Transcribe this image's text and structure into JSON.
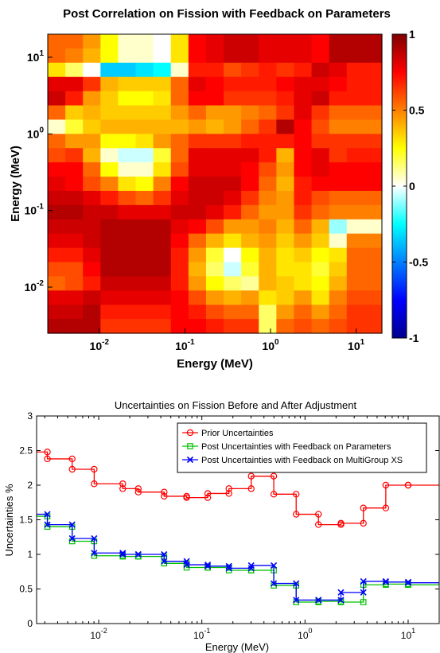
{
  "chart_data": [
    {
      "type": "heatmap",
      "title": "Post Correlation on Fission with Feedback on Parameters",
      "xlabel": "Energy (MeV)",
      "ylabel": "Energy (MeV)",
      "scale": "log",
      "xlim": [
        0.0025,
        20
      ],
      "ylim": [
        0.0025,
        20
      ],
      "x_ticks": [
        {
          "base": "10",
          "exp": "-2"
        },
        {
          "base": "10",
          "exp": "-1"
        },
        {
          "base": "10",
          "exp": "0"
        },
        {
          "base": "10",
          "exp": "1"
        }
      ],
      "y_ticks": [
        {
          "base": "10",
          "exp": "-2"
        },
        {
          "base": "10",
          "exp": "-1"
        },
        {
          "base": "10",
          "exp": "0"
        },
        {
          "base": "10",
          "exp": "1"
        }
      ],
      "colorbar": {
        "min": -1,
        "max": 1,
        "ticks": [
          "1",
          "0.5",
          "0",
          "-0.5",
          "-1"
        ],
        "colormap": "jet"
      },
      "matrix": [
        [
          0.55,
          0.55,
          0.45,
          0.25,
          0.05,
          0.05,
          0.0,
          0.3,
          0.75,
          0.8,
          0.85,
          0.85,
          0.8,
          0.8,
          0.8,
          0.75,
          0.9,
          0.9,
          0.9
        ],
        [
          0.55,
          0.5,
          0.4,
          0.25,
          0.05,
          0.05,
          0.0,
          0.3,
          0.75,
          0.8,
          0.85,
          0.85,
          0.8,
          0.8,
          0.8,
          0.75,
          0.9,
          0.9,
          0.9
        ],
        [
          0.3,
          0.15,
          0.0,
          -0.35,
          -0.35,
          -0.3,
          -0.25,
          0.05,
          0.7,
          0.7,
          0.6,
          0.65,
          0.7,
          0.65,
          0.7,
          0.85,
          0.8,
          0.7,
          0.7
        ],
        [
          0.8,
          0.8,
          0.65,
          0.4,
          0.35,
          0.35,
          0.35,
          0.55,
          0.8,
          0.75,
          0.7,
          0.7,
          0.7,
          0.75,
          0.8,
          0.8,
          0.75,
          0.7,
          0.7
        ],
        [
          0.85,
          0.7,
          0.45,
          0.35,
          0.25,
          0.25,
          0.3,
          0.55,
          0.75,
          0.75,
          0.65,
          0.65,
          0.65,
          0.7,
          0.8,
          0.85,
          0.7,
          0.7,
          0.7
        ],
        [
          0.55,
          0.35,
          0.4,
          0.35,
          0.35,
          0.35,
          0.35,
          0.45,
          0.55,
          0.45,
          0.45,
          0.5,
          0.55,
          0.65,
          0.8,
          0.65,
          0.55,
          0.55,
          0.55
        ],
        [
          0.05,
          0.2,
          0.35,
          0.4,
          0.4,
          0.4,
          0.4,
          0.4,
          0.45,
          0.4,
          0.45,
          0.55,
          0.65,
          0.9,
          0.75,
          0.6,
          0.5,
          0.5,
          0.5
        ],
        [
          0.55,
          0.45,
          0.45,
          0.25,
          0.25,
          0.3,
          0.45,
          0.55,
          0.65,
          0.65,
          0.65,
          0.7,
          0.7,
          0.7,
          0.75,
          0.65,
          0.65,
          0.65,
          0.65
        ],
        [
          0.6,
          0.65,
          0.4,
          0.05,
          -0.05,
          -0.05,
          0.2,
          0.55,
          0.8,
          0.8,
          0.8,
          0.8,
          0.7,
          0.4,
          0.75,
          0.8,
          0.65,
          0.7,
          0.7
        ],
        [
          0.75,
          0.75,
          0.55,
          0.25,
          0.05,
          0.05,
          0.3,
          0.6,
          0.8,
          0.8,
          0.8,
          0.75,
          0.6,
          0.45,
          0.75,
          0.8,
          0.75,
          0.75,
          0.75
        ],
        [
          0.8,
          0.75,
          0.6,
          0.5,
          0.3,
          0.25,
          0.5,
          0.75,
          0.85,
          0.85,
          0.85,
          0.75,
          0.55,
          0.4,
          0.7,
          0.75,
          0.75,
          0.75,
          0.75
        ],
        [
          0.85,
          0.85,
          0.8,
          0.7,
          0.6,
          0.55,
          0.65,
          0.8,
          0.85,
          0.85,
          0.8,
          0.65,
          0.5,
          0.45,
          0.7,
          0.6,
          0.55,
          0.55,
          0.55
        ],
        [
          0.9,
          0.9,
          0.85,
          0.85,
          0.8,
          0.8,
          0.8,
          0.85,
          0.85,
          0.8,
          0.7,
          0.55,
          0.45,
          0.45,
          0.65,
          0.55,
          0.5,
          0.5,
          0.5
        ],
        [
          0.85,
          0.85,
          0.85,
          0.9,
          0.9,
          0.9,
          0.9,
          0.8,
          0.75,
          0.6,
          0.45,
          0.45,
          0.5,
          0.4,
          0.55,
          0.4,
          -0.1,
          0.05,
          0.05
        ],
        [
          0.8,
          0.8,
          0.85,
          0.9,
          0.9,
          0.9,
          0.9,
          0.75,
          0.55,
          0.4,
          0.3,
          0.4,
          0.45,
          0.35,
          0.45,
          0.35,
          0.05,
          0.5,
          0.5
        ],
        [
          0.7,
          0.7,
          0.8,
          0.9,
          0.9,
          0.9,
          0.9,
          0.7,
          0.45,
          0.2,
          0.0,
          0.25,
          0.4,
          0.3,
          0.35,
          0.25,
          0.3,
          0.55,
          0.55
        ],
        [
          0.6,
          0.6,
          0.75,
          0.9,
          0.9,
          0.9,
          0.9,
          0.7,
          0.4,
          0.15,
          -0.05,
          0.2,
          0.4,
          0.3,
          0.3,
          0.2,
          0.35,
          0.55,
          0.55
        ],
        [
          0.55,
          0.6,
          0.7,
          0.85,
          0.85,
          0.85,
          0.85,
          0.7,
          0.45,
          0.25,
          0.15,
          0.1,
          0.4,
          0.35,
          0.3,
          0.25,
          0.4,
          0.55,
          0.55
        ],
        [
          0.8,
          0.8,
          0.85,
          0.8,
          0.8,
          0.8,
          0.8,
          0.75,
          0.6,
          0.45,
          0.4,
          0.45,
          0.3,
          0.35,
          0.45,
          0.3,
          0.5,
          0.6,
          0.6
        ],
        [
          0.85,
          0.85,
          0.9,
          0.7,
          0.7,
          0.7,
          0.7,
          0.75,
          0.7,
          0.6,
          0.55,
          0.55,
          0.15,
          0.45,
          0.55,
          0.45,
          0.55,
          0.65,
          0.65
        ],
        [
          0.9,
          0.9,
          0.9,
          0.65,
          0.65,
          0.65,
          0.65,
          0.75,
          0.75,
          0.7,
          0.65,
          0.65,
          0.15,
          0.55,
          0.6,
          0.55,
          0.6,
          0.65,
          0.65
        ]
      ]
    },
    {
      "type": "line",
      "step": true,
      "title": "Uncertainties on Fission Before and After Adjustment",
      "xlabel": "Energy (MeV)",
      "ylabel": "Uncertainties %",
      "xscale": "log",
      "xlim": [
        0.0025,
        20
      ],
      "ylim": [
        0,
        3
      ],
      "x_ticks": [
        {
          "base": "10",
          "exp": "-2"
        },
        {
          "base": "10",
          "exp": "-1"
        },
        {
          "base": "10",
          "exp": "0"
        },
        {
          "base": "10",
          "exp": "1"
        }
      ],
      "y_ticks": [
        "0",
        "0.5",
        "1",
        "1.5",
        "2",
        "2.5",
        "3"
      ],
      "grid": false,
      "legend": "top-right",
      "x": [
        0.0025,
        0.00318,
        0.00318,
        0.00553,
        0.00553,
        0.00904,
        0.00904,
        0.0171,
        0.0171,
        0.0242,
        0.0242,
        0.0431,
        0.0431,
        0.0712,
        0.0712,
        0.114,
        0.114,
        0.183,
        0.183,
        0.301,
        0.301,
        0.498,
        0.498,
        0.821,
        0.821,
        1.35,
        1.35,
        2.23,
        2.23,
        3.68,
        3.68,
        6.07,
        6.07,
        10,
        10,
        20
      ],
      "series": [
        {
          "name": "Prior Uncertainties",
          "color": "#ff0000",
          "marker": "circle",
          "y": [
            2.48,
            2.48,
            2.38,
            2.38,
            2.23,
            2.23,
            2.02,
            2.02,
            1.95,
            1.95,
            1.9,
            1.9,
            1.84,
            1.84,
            1.82,
            1.82,
            1.88,
            1.88,
            1.95,
            1.95,
            2.13,
            2.13,
            1.87,
            1.87,
            1.58,
            1.58,
            1.43,
            1.43,
            1.45,
            1.45,
            1.67,
            1.67,
            2.0,
            2.0,
            2.0,
            2.0
          ]
        },
        {
          "name": "Post Uncertainties with Feedback on Parameters",
          "color": "#00c000",
          "marker": "square",
          "y": [
            1.55,
            1.55,
            1.4,
            1.4,
            1.19,
            1.19,
            0.98,
            0.98,
            0.97,
            0.97,
            0.97,
            0.97,
            0.87,
            0.87,
            0.81,
            0.81,
            0.81,
            0.81,
            0.77,
            0.77,
            0.77,
            0.77,
            0.55,
            0.55,
            0.31,
            0.31,
            0.32,
            0.32,
            0.31,
            0.31,
            0.56,
            0.56,
            0.57,
            0.57,
            0.56,
            0.56
          ]
        },
        {
          "name": "Post Uncertainties with Feedback on MultiGroup XS",
          "color": "#0000ff",
          "marker": "x",
          "y": [
            1.58,
            1.58,
            1.43,
            1.43,
            1.23,
            1.23,
            1.02,
            1.02,
            1.0,
            1.0,
            1.0,
            1.0,
            0.9,
            0.9,
            0.85,
            0.85,
            0.83,
            0.83,
            0.8,
            0.8,
            0.84,
            0.84,
            0.58,
            0.58,
            0.34,
            0.34,
            0.34,
            0.34,
            0.45,
            0.45,
            0.61,
            0.61,
            0.6,
            0.6,
            0.59,
            0.59
          ]
        }
      ]
    }
  ]
}
